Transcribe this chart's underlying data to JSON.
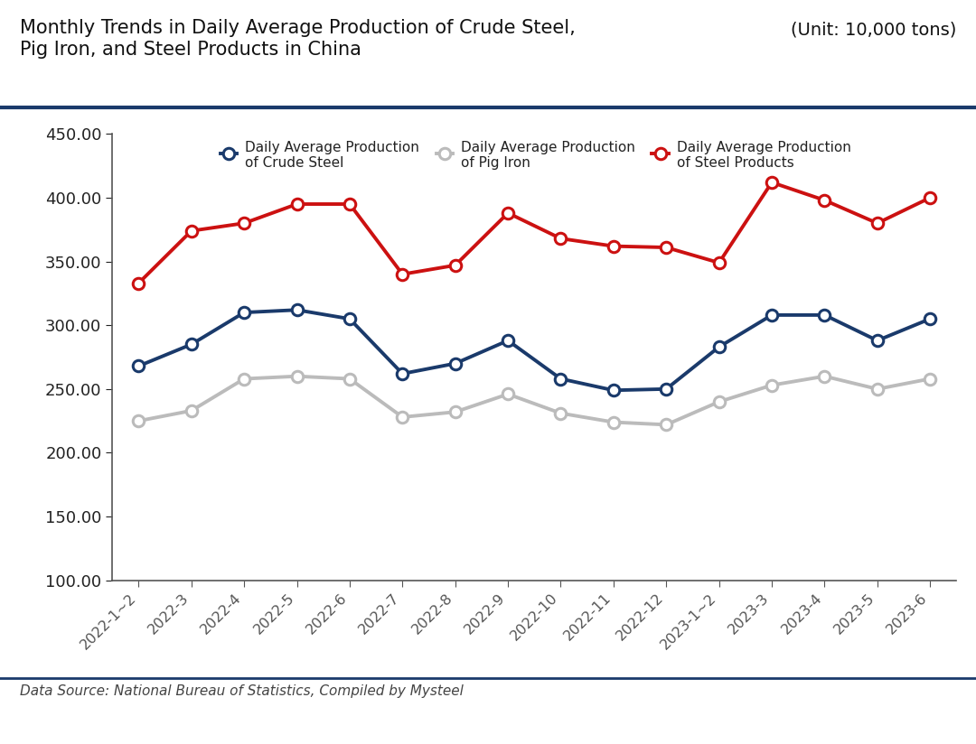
{
  "title_line1": "Monthly Trends in Daily Average Production of Crude Steel,",
  "title_line2": "Pig Iron, and Steel Products in China",
  "unit_label": "(Unit: 10,000 tons)",
  "data_source": "Data Source: National Bureau of Statistics, Compiled by Mysteel",
  "x_labels": [
    "2022-1~2",
    "2022-3",
    "2022-4",
    "2022-5",
    "2022-6",
    "2022-7",
    "2022-8",
    "2022-9",
    "2022-10",
    "2022-11",
    "2022-12",
    "2023-1~2",
    "2023-3",
    "2023-4",
    "2023-5",
    "2023-6"
  ],
  "crude_steel": [
    268,
    285,
    310,
    312,
    305,
    262,
    270,
    288,
    258,
    249,
    250,
    283,
    308,
    308,
    288,
    305
  ],
  "pig_iron": [
    225,
    233,
    258,
    260,
    258,
    228,
    232,
    246,
    231,
    224,
    222,
    240,
    253,
    260,
    250,
    258
  ],
  "steel_products": [
    333,
    374,
    380,
    395,
    395,
    340,
    347,
    388,
    368,
    362,
    361,
    349,
    412,
    398,
    380,
    400
  ],
  "crude_steel_color": "#1a3a6b",
  "pig_iron_color": "#bbbbbb",
  "steel_products_color": "#cc1111",
  "ylim_min": 100,
  "ylim_max": 450,
  "yticks": [
    100,
    150,
    200,
    250,
    300,
    350,
    400,
    450
  ],
  "bg_color": "#ffffff",
  "plot_bg_color": "#ffffff",
  "title_color": "#111111",
  "separator_color": "#1a3a6b",
  "axis_color": "#555555",
  "legend_crude_steel": [
    "Daily Average Production",
    "of Crude Steel"
  ],
  "legend_pig_iron": [
    "Daily Average Production",
    "of Pig Iron"
  ],
  "legend_steel_products": [
    "Daily Average Production",
    "of Steel Products"
  ],
  "marker_size": 9,
  "line_width": 2.8
}
